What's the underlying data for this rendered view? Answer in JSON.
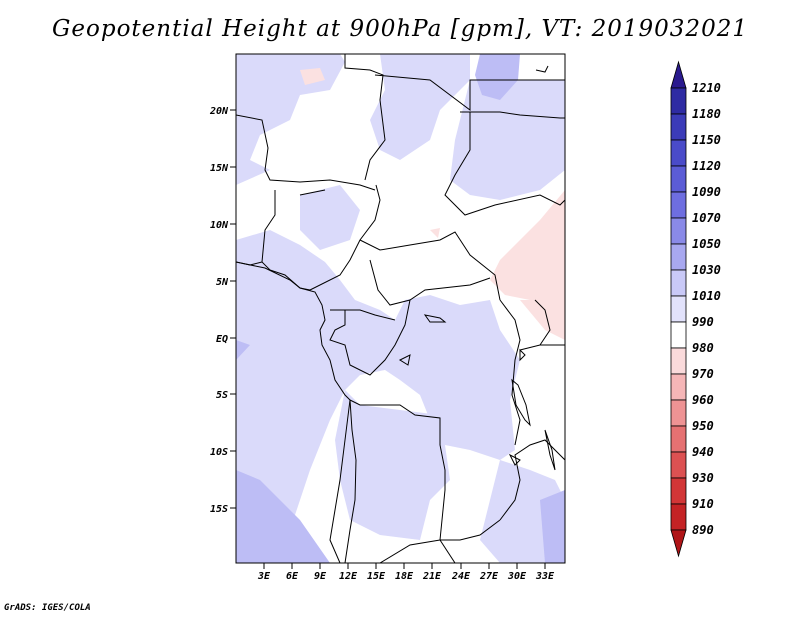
{
  "title": "Geopotential Height at 900hPa [gpm], VT: 2019032021",
  "credit": "GrADS: IGES/COLA",
  "map": {
    "lat_labels": [
      "20N",
      "15N",
      "10N",
      "5N",
      "EQ",
      "5S",
      "10S",
      "15S"
    ],
    "lon_labels": [
      "3E",
      "6E",
      "9E",
      "12E",
      "15E",
      "18E",
      "21E",
      "24E",
      "27E",
      "30E",
      "33E"
    ]
  },
  "colorbar": {
    "levels": [
      "1210",
      "1180",
      "1150",
      "1120",
      "1090",
      "1070",
      "1050",
      "1030",
      "1010",
      "990",
      "980",
      "970",
      "960",
      "950",
      "940",
      "930",
      "910",
      "890"
    ],
    "colors": [
      "#2a1a8e",
      "#2e2ba3",
      "#3b3bb8",
      "#4a4bc9",
      "#5b5cd6",
      "#6e6ee0",
      "#8a8ae8",
      "#a8a8f0",
      "#c9c9f7",
      "#e2e2fb",
      "#ffffff",
      "#fadadb",
      "#f5b6b7",
      "#ee9394",
      "#e57172",
      "#dc5152",
      "#d23637",
      "#c42325",
      "#b01518"
    ]
  }
}
